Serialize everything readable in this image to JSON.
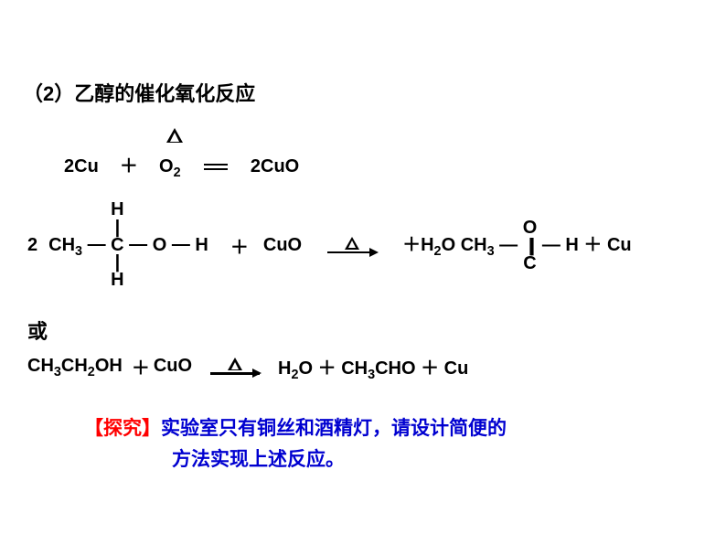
{
  "colors": {
    "background": "#ffffff",
    "text": "#000000",
    "red": "#ff0000",
    "blue": "#0000d0"
  },
  "fonts": {
    "family": "SimHei / Heiti",
    "heading_size_pt": 22,
    "formula_size_pt": 20,
    "explore_size_pt": 21,
    "weight": "bold"
  },
  "heading": "（2）乙醇的催化氧化反应",
  "eq1": {
    "lhs_a": "2Cu",
    "plus": "＋",
    "lhs_b": "O",
    "lhs_b_sub": "2",
    "condition": "△",
    "rhs": "2CuO"
  },
  "eq2": {
    "coef": "2",
    "ethanol": {
      "top": "H",
      "left": "CH",
      "left_sub": "3",
      "center": "C",
      "right_o": "O",
      "right_h": "H",
      "bottom": "H"
    },
    "plus": "＋",
    "reagent": "CuO",
    "arrow_condition": "△",
    "products": {
      "p1_pre": "H",
      "p1_sub": "2",
      "p1_post": "O",
      "acet_left": "CH",
      "acet_left_sub": "3",
      "acet_c": "C",
      "acet_top": "O",
      "acet_right": "H",
      "plus": "＋",
      "cu": "Cu",
      "plus_water_prefix": "＋"
    }
  },
  "or_label": "或",
  "eq3": {
    "lhs": "CH",
    "lhs_sub1": "3",
    "lhs_mid": "CH",
    "lhs_sub2": "2",
    "lhs_end": "OH",
    "plus": "＋",
    "reagent": "CuO",
    "arrow_condition": "△",
    "rhs_a": "H",
    "rhs_a_sub": "2",
    "rhs_a2": "O",
    "rhs_b": "CH",
    "rhs_b_sub": "3",
    "rhs_b2": "CHO",
    "rhs_c": "Cu"
  },
  "explore": {
    "tag": "【探究】",
    "line1": "实验室只有铜丝和酒精灯，请设计简便的",
    "line2": "方法实现上述反应。"
  }
}
